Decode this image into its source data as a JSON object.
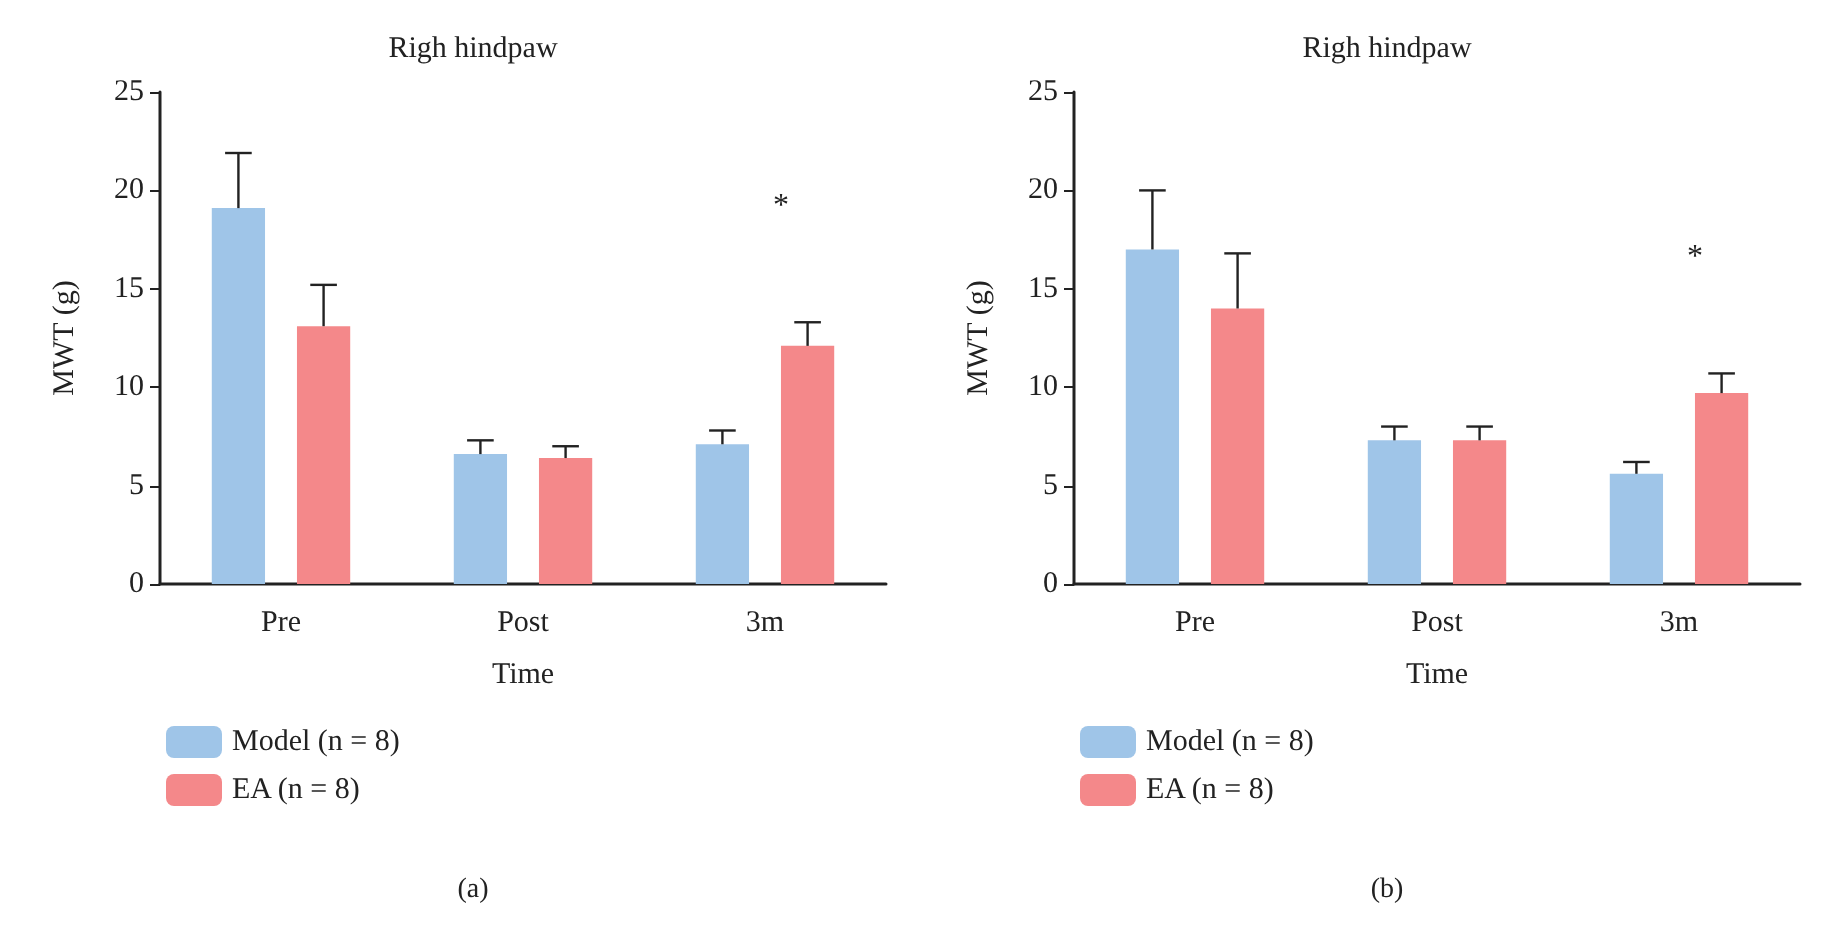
{
  "chart_data": [
    {
      "type": "bar",
      "title": "Righ hindpaw",
      "xlabel": "Time",
      "ylabel": "MWT (g)",
      "categories": [
        "Pre",
        "Post",
        "3m"
      ],
      "series": [
        {
          "name": "Model (n = 8)",
          "color": "#9fc5e8",
          "values": [
            19.1,
            6.6,
            7.1
          ],
          "errors": [
            2.8,
            0.7,
            0.7
          ]
        },
        {
          "name": "EA (n = 8)",
          "color": "#f4888a",
          "values": [
            13.1,
            6.4,
            12.1
          ],
          "errors": [
            2.1,
            0.6,
            1.2
          ]
        }
      ],
      "ylim": [
        0,
        25
      ],
      "yticks": [
        0,
        5,
        10,
        15,
        20,
        25
      ],
      "grid": false,
      "legend": "bottom left",
      "annotations": [
        "*",
        "(a)"
      ]
    },
    {
      "type": "bar",
      "title": "Righ hindpaw",
      "xlabel": "Time",
      "ylabel": "MWT (g)",
      "categories": [
        "Pre",
        "Post",
        "3m"
      ],
      "series": [
        {
          "name": "Model (n = 8)",
          "color": "#9fc5e8",
          "values": [
            17,
            7.3,
            5.6
          ],
          "errors": [
            3,
            0.7,
            0.6
          ]
        },
        {
          "name": "EA (n = 8)",
          "color": "#f4888a",
          "values": [
            14,
            7.3,
            9.7
          ],
          "errors": [
            2.8,
            0.7,
            1.0
          ]
        }
      ],
      "ylim": [
        0,
        25
      ],
      "yticks": [
        0,
        5,
        10,
        15,
        20,
        25
      ],
      "grid": false,
      "legend": "bottom left",
      "annotations": [
        "*",
        "(b)"
      ]
    }
  ]
}
